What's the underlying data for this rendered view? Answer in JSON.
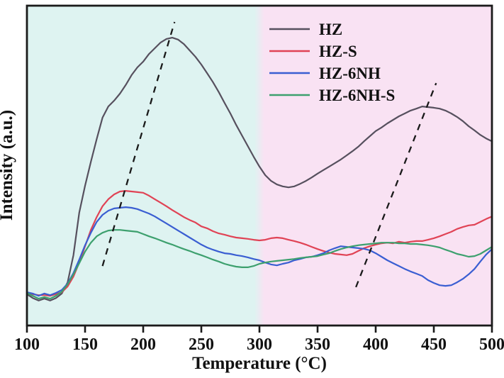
{
  "chart_data": {
    "type": "line",
    "title": "",
    "xlabel": "Temperature (°C)",
    "ylabel": "Intensity (a.u.)",
    "xlim": [
      100,
      500
    ],
    "ylim": [
      0,
      100
    ],
    "y_units": "a.u. (unlabeled axis; values are % of plot height)",
    "grid": false,
    "x_ticks": [
      100,
      150,
      200,
      250,
      300,
      350,
      400,
      450,
      500
    ],
    "legend_position": "upper area, inside plot, right of center",
    "frame_color": "#1a1a1a",
    "background_regions": [
      {
        "x_from": 100,
        "x_to": 300,
        "color": "#def3f1"
      },
      {
        "x_from": 300,
        "x_to": 500,
        "color": "#f9e2f3"
      }
    ],
    "x": [
      100,
      105,
      110,
      115,
      120,
      125,
      130,
      135,
      140,
      145,
      150,
      155,
      160,
      165,
      170,
      175,
      180,
      185,
      190,
      195,
      200,
      205,
      210,
      215,
      220,
      225,
      230,
      235,
      240,
      245,
      250,
      255,
      260,
      265,
      270,
      275,
      280,
      285,
      290,
      295,
      300,
      305,
      310,
      315,
      320,
      325,
      330,
      335,
      340,
      345,
      350,
      355,
      360,
      365,
      370,
      375,
      380,
      385,
      390,
      395,
      400,
      405,
      410,
      415,
      420,
      425,
      430,
      435,
      440,
      445,
      450,
      455,
      460,
      465,
      470,
      475,
      480,
      485,
      490,
      495,
      500
    ],
    "series": [
      {
        "name": "HZ",
        "color": "#56505e",
        "values": [
          9.8,
          8.6,
          7.8,
          8.4,
          7.8,
          8.6,
          10.0,
          13.5,
          22.0,
          35.3,
          43.7,
          51.2,
          58.3,
          65.0,
          68.5,
          70.3,
          72.5,
          75.2,
          78.3,
          80.7,
          82.5,
          84.9,
          86.7,
          88.5,
          89.6,
          90.0,
          89.4,
          88.0,
          86.0,
          84.0,
          81.6,
          78.9,
          76.1,
          73.0,
          69.6,
          66.3,
          62.7,
          59.4,
          56.1,
          52.8,
          49.7,
          47.0,
          45.2,
          44.1,
          43.5,
          43.2,
          43.5,
          44.3,
          45.2,
          46.3,
          47.5,
          48.6,
          49.7,
          50.8,
          51.9,
          53.2,
          54.5,
          55.9,
          57.6,
          59.2,
          60.8,
          61.9,
          63.2,
          64.3,
          65.4,
          66.3,
          67.2,
          67.8,
          68.5,
          68.3,
          68.1,
          67.8,
          67.2,
          66.3,
          65.2,
          63.9,
          62.3,
          61.0,
          59.6,
          58.5,
          57.6
        ]
      },
      {
        "name": "HZ-S",
        "color": "#e04355",
        "values": [
          10.2,
          9.8,
          9.5,
          9.5,
          9.3,
          9.8,
          10.4,
          12.2,
          15.3,
          19.7,
          24.8,
          29.9,
          33.9,
          37.3,
          39.5,
          41.0,
          41.9,
          42.1,
          41.9,
          41.7,
          41.5,
          40.6,
          39.5,
          38.4,
          37.3,
          36.1,
          35.0,
          33.9,
          33.0,
          32.2,
          31.0,
          30.4,
          29.5,
          28.8,
          28.4,
          27.9,
          27.5,
          27.3,
          27.1,
          26.8,
          26.6,
          26.8,
          27.3,
          27.5,
          27.3,
          26.8,
          26.4,
          25.9,
          25.3,
          24.6,
          23.9,
          23.3,
          22.8,
          22.4,
          22.2,
          22.0,
          22.4,
          23.3,
          24.2,
          24.8,
          25.3,
          25.7,
          25.9,
          25.7,
          26.2,
          25.9,
          26.2,
          26.4,
          26.4,
          26.8,
          27.3,
          27.9,
          28.6,
          29.3,
          30.2,
          30.8,
          31.3,
          31.5,
          32.4,
          33.3,
          34.1
        ]
      },
      {
        "name": "HZ-6NH",
        "color": "#3a5ed2",
        "values": [
          10.4,
          10.0,
          9.3,
          10.0,
          9.5,
          10.2,
          11.1,
          13.1,
          16.4,
          20.6,
          25.1,
          29.0,
          32.4,
          34.6,
          35.9,
          36.6,
          36.8,
          37.0,
          36.8,
          36.4,
          35.7,
          35.0,
          34.1,
          33.0,
          31.9,
          30.8,
          29.7,
          28.6,
          27.5,
          26.4,
          25.3,
          24.4,
          23.7,
          23.1,
          22.6,
          22.4,
          22.0,
          21.7,
          21.3,
          20.8,
          20.4,
          19.7,
          19.1,
          18.8,
          19.3,
          19.7,
          20.4,
          20.8,
          21.3,
          21.5,
          22.0,
          22.6,
          23.5,
          24.2,
          24.8,
          24.6,
          24.4,
          24.2,
          24.0,
          23.5,
          22.6,
          21.5,
          20.4,
          19.5,
          18.6,
          17.7,
          16.9,
          16.2,
          15.5,
          14.2,
          13.3,
          12.6,
          12.4,
          12.6,
          13.5,
          14.6,
          16.0,
          17.7,
          20.0,
          22.2,
          23.9
        ]
      },
      {
        "name": "HZ-6NH-S",
        "color": "#3da06e",
        "values": [
          10.2,
          9.3,
          8.4,
          8.9,
          8.4,
          9.3,
          10.6,
          12.9,
          16.0,
          19.5,
          23.1,
          25.9,
          27.9,
          29.0,
          29.7,
          29.9,
          29.9,
          29.7,
          29.5,
          29.3,
          28.6,
          27.9,
          27.3,
          26.6,
          25.9,
          25.3,
          24.6,
          23.9,
          23.3,
          22.6,
          22.0,
          21.3,
          20.6,
          20.0,
          19.3,
          18.8,
          18.4,
          18.2,
          18.2,
          18.6,
          19.3,
          19.7,
          20.0,
          20.2,
          20.4,
          20.6,
          20.8,
          21.1,
          21.3,
          21.5,
          21.7,
          22.2,
          22.6,
          23.3,
          23.9,
          24.4,
          24.8,
          25.1,
          25.3,
          25.5,
          25.7,
          25.9,
          25.9,
          25.9,
          25.7,
          25.7,
          25.5,
          25.5,
          25.3,
          25.1,
          24.8,
          24.4,
          23.7,
          23.1,
          22.4,
          22.0,
          21.5,
          21.7,
          22.4,
          23.5,
          24.6
        ]
      }
    ],
    "annotations": [
      {
        "type": "dashed-line",
        "x1": 165,
        "y1": 18.6,
        "x2": 227,
        "y2": 94.9,
        "color": "#1a1a1a"
      },
      {
        "type": "dashed-line",
        "x1": 383,
        "y1": 12.0,
        "x2": 452,
        "y2": 75.8,
        "color": "#1a1a1a"
      }
    ]
  }
}
